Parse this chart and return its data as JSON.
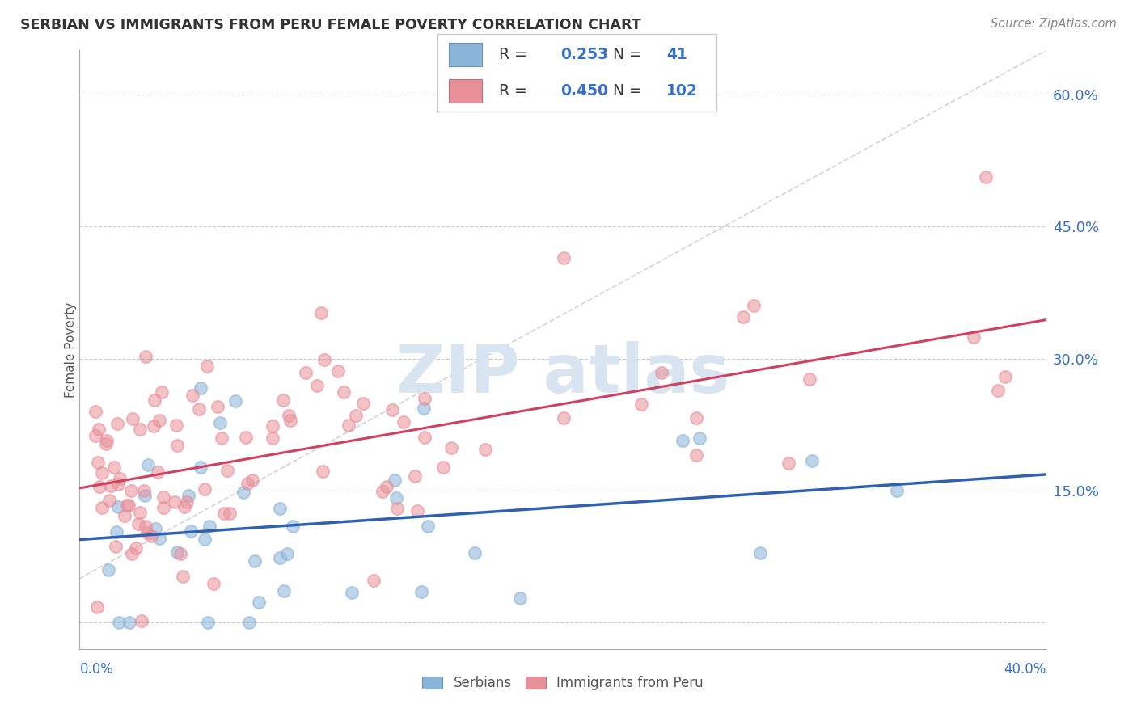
{
  "title": "SERBIAN VS IMMIGRANTS FROM PERU FEMALE POVERTY CORRELATION CHART",
  "source": "Source: ZipAtlas.com",
  "ylabel": "Female Poverty",
  "yticks": [
    0.0,
    0.15,
    0.3,
    0.45,
    0.6
  ],
  "ytick_labels": [
    "",
    "15.0%",
    "30.0%",
    "45.0%",
    "60.0%"
  ],
  "xlim": [
    0.0,
    0.4
  ],
  "ylim": [
    -0.03,
    0.65
  ],
  "serbian_R": 0.253,
  "serbian_N": 41,
  "peru_R": 0.45,
  "peru_N": 102,
  "serbian_color": "#8ab4d8",
  "peru_color": "#e8909a",
  "serbian_line_color": "#3060b0",
  "peru_line_color": "#d04060",
  "dashed_line_color": "#c0c0c0",
  "background_color": "#ffffff",
  "watermark_color": "#d8e4f0",
  "title_color": "#333333",
  "source_color": "#888888",
  "axis_label_color": "#555555",
  "tick_color": "#3570c8",
  "legend_text_color": "#333333",
  "legend_value_color": "#3570c8",
  "grid_color": "#c8cdd8",
  "spine_color": "#aaaaaa"
}
